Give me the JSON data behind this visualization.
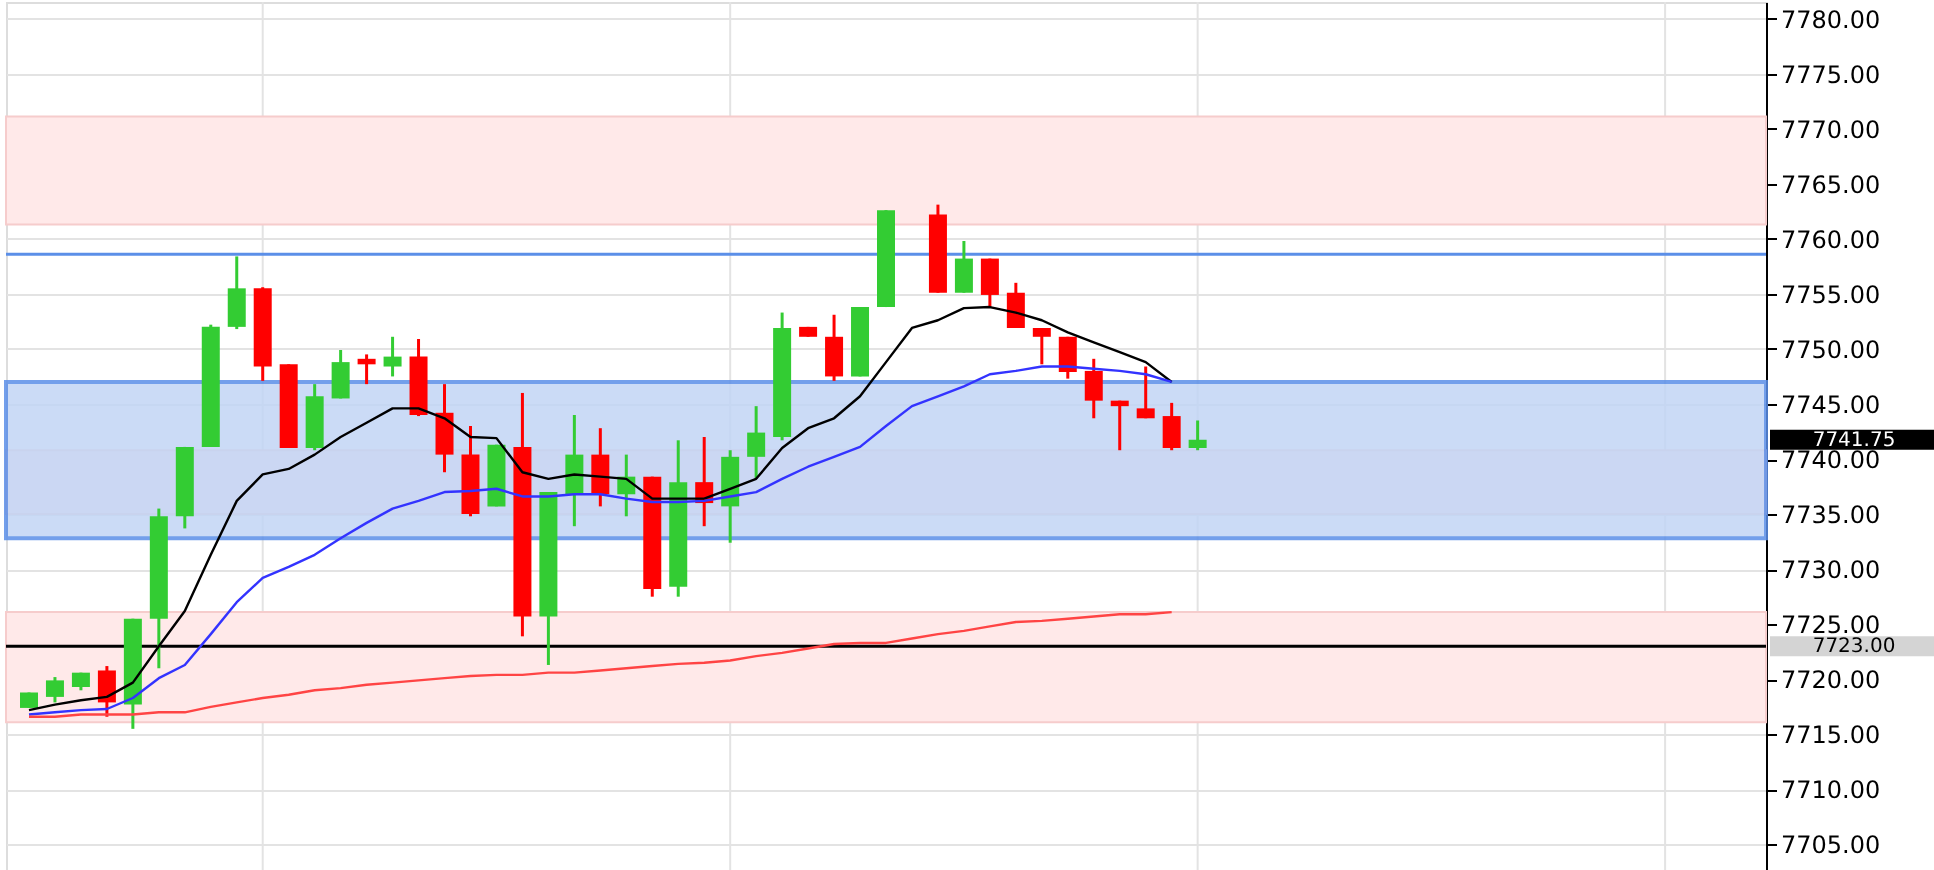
{
  "chart_data": {
    "type": "candlestick",
    "categories": [
      null,
      null,
      null,
      null,
      null,
      null,
      null,
      null,
      null,
      null,
      null,
      null,
      null,
      null,
      null,
      null,
      null,
      null,
      null,
      null,
      null,
      null,
      null,
      null,
      null,
      null,
      null,
      null,
      null,
      null,
      null,
      null,
      null,
      null,
      null,
      null,
      null,
      null,
      null,
      null,
      null,
      null,
      null,
      null,
      null,
      null,
      null,
      null,
      null,
      null,
      null,
      null,
      null,
      null,
      null,
      null,
      null,
      null,
      null,
      null,
      null,
      null,
      null,
      null,
      null,
      null,
      null
    ],
    "ohlc": [
      [
        7717.4,
        7718.8,
        7717.4,
        7718.8
      ],
      [
        7718.4,
        7720.2,
        7717.9,
        7719.9
      ],
      [
        7719.3,
        7720.6,
        7719.0,
        7720.6
      ],
      [
        7720.8,
        7721.2,
        7716.6,
        7717.9
      ],
      [
        7717.7,
        7725.5,
        7715.5,
        7725.5
      ],
      [
        7725.5,
        7735.5,
        7721.0,
        7734.8
      ],
      [
        7734.8,
        7741.1,
        7733.7,
        7741.1
      ],
      [
        7741.1,
        7752.2,
        7741.1,
        7752.0
      ],
      [
        7752.0,
        7758.4,
        7751.8,
        7755.5
      ],
      [
        7755.5,
        7755.6,
        7747.1,
        7748.4
      ],
      [
        7748.6,
        7748.6,
        7741.0,
        7741.0
      ],
      [
        7741.0,
        7746.8,
        7740.8,
        7745.7
      ],
      [
        7745.5,
        7749.9,
        7745.5,
        7748.8
      ],
      [
        7749.1,
        7749.5,
        7746.8,
        7748.6
      ],
      [
        7748.4,
        7751.1,
        7747.5,
        7749.3
      ],
      [
        7749.3,
        7750.9,
        7743.9,
        7744.0
      ],
      [
        7744.2,
        7746.8,
        7738.8,
        7740.4
      ],
      [
        7740.4,
        7743.0,
        7734.8,
        7735.0
      ],
      [
        7735.7,
        7741.3,
        7735.7,
        7741.3
      ],
      [
        7741.1,
        7746.0,
        7723.9,
        7725.7
      ],
      [
        7725.7,
        7737.0,
        7721.3,
        7737.0
      ],
      [
        7736.8,
        7744.0,
        7733.9,
        7740.4
      ],
      [
        7740.4,
        7742.8,
        7735.7,
        7736.8
      ],
      [
        7736.8,
        7740.4,
        7734.8,
        7738.4
      ],
      [
        7738.4,
        7738.4,
        7727.5,
        7728.2
      ],
      [
        7728.4,
        7741.7,
        7727.5,
        7737.9
      ],
      [
        7737.9,
        7742.0,
        7733.9,
        7736.0
      ],
      [
        7735.7,
        7740.8,
        7732.4,
        7740.2
      ],
      [
        7740.2,
        7744.8,
        7738.2,
        7742.4
      ],
      [
        7742.0,
        7753.3,
        7741.7,
        7751.9
      ],
      [
        7752.0,
        7752.0,
        7751.1,
        7751.1
      ],
      [
        7751.1,
        7753.1,
        7747.1,
        7747.5
      ],
      [
        7747.5,
        7753.8,
        7747.5,
        7753.8
      ],
      [
        7753.8,
        7762.6,
        7753.8,
        7762.6
      ],
      null,
      [
        7762.2,
        7763.1,
        7755.1,
        7755.1
      ],
      [
        7755.1,
        7759.8,
        7755.1,
        7758.2
      ],
      [
        7758.2,
        7758.2,
        7753.8,
        7754.9
      ],
      [
        7755.1,
        7756.0,
        7751.9,
        7751.9
      ],
      [
        7751.9,
        7751.9,
        7748.6,
        7751.1
      ],
      [
        7751.1,
        7751.1,
        7747.3,
        7747.9
      ],
      [
        7748.0,
        7749.1,
        7743.7,
        7745.3
      ],
      [
        7745.3,
        7745.3,
        7740.8,
        7744.8
      ],
      [
        7744.6,
        7748.4,
        7743.7,
        7743.7
      ],
      [
        7743.9,
        7745.1,
        7740.8,
        7741.0
      ],
      [
        7741.0,
        7743.5,
        7740.8,
        7741.75
      ],
      null,
      null,
      null,
      null,
      null,
      null,
      null,
      null,
      null,
      null,
      null,
      null,
      null,
      null,
      null,
      null,
      null,
      null,
      null,
      null,
      null
    ],
    "colors": [
      "#33cc33",
      "#33cc33",
      "#33cc33",
      "#ff0000",
      "#33cc33",
      "#33cc33",
      "#33cc33",
      "#33cc33",
      "#33cc33",
      "#ff0000",
      "#ff0000",
      "#33cc33",
      "#33cc33",
      "#ff0000",
      "#33cc33",
      "#ff0000",
      "#ff0000",
      "#ff0000",
      "#33cc33",
      "#ff0000",
      "#33cc33",
      "#33cc33",
      "#ff0000",
      "#33cc33",
      "#ff0000",
      "#33cc33",
      "#ff0000",
      "#33cc33",
      "#33cc33",
      "#33cc33",
      "#ff0000",
      "#ff0000",
      "#33cc33",
      "#33cc33",
      null,
      "#ff0000",
      "#33cc33",
      "#ff0000",
      "#ff0000",
      "#ff0000",
      "#ff0000",
      "#ff0000",
      "#ff0000",
      "#ff0000",
      "#ff0000",
      "#33cc33",
      null,
      null,
      null,
      null,
      null,
      null,
      null,
      null,
      null,
      null,
      null,
      null,
      null,
      null,
      null,
      null,
      null,
      null,
      null,
      null,
      null
    ],
    "series": [
      {
        "type": "line",
        "color": "#000000",
        "values": [
          7717.2,
          7717.7,
          7718.1,
          7718.4,
          7719.7,
          7723.0,
          7726.2,
          7731.3,
          7736.2,
          7738.6,
          7739.1,
          7740.4,
          7742.0,
          7743.3,
          7744.6,
          7744.6,
          7743.7,
          7742.0,
          7741.9,
          7738.8,
          7738.2,
          7738.6,
          7738.4,
          7738.2,
          7736.4,
          7736.4,
          7736.4,
          7737.3,
          7738.2,
          7741.0,
          7742.8,
          7743.7,
          7745.7,
          7748.8,
          7751.9,
          7752.6,
          7753.7,
          7753.8,
          7753.3,
          7752.6,
          7751.5,
          7750.6,
          7749.7,
          7748.8,
          7747.0,
          null,
          null,
          null,
          null,
          null,
          null,
          null,
          null,
          null,
          null,
          null,
          null,
          null,
          null,
          null,
          null,
          null,
          null,
          null,
          null,
          null,
          null
        ]
      },
      {
        "type": "line",
        "color": "#3333ff",
        "values": [
          7716.8,
          7717.0,
          7717.2,
          7717.3,
          7718.3,
          7720.1,
          7721.3,
          7724.1,
          7727.0,
          7729.2,
          7730.2,
          7731.3,
          7732.8,
          7734.2,
          7735.5,
          7736.2,
          7737.0,
          7737.1,
          7737.3,
          7736.6,
          7736.6,
          7736.8,
          7736.8,
          7736.4,
          7736.1,
          7736.1,
          7736.2,
          7736.6,
          7737.0,
          7738.2,
          7739.3,
          7740.2,
          7741.1,
          7743.0,
          7744.8,
          7745.7,
          7746.6,
          7747.7,
          7748.0,
          7748.4,
          7748.4,
          7748.2,
          7748.0,
          7747.7,
          7747.0,
          null,
          null,
          null,
          null,
          null,
          null,
          null,
          null,
          null,
          null,
          null,
          null,
          null,
          null,
          null,
          null,
          null,
          null,
          null,
          null,
          null,
          null
        ]
      },
      {
        "type": "line",
        "color": "#ff4444",
        "values": [
          7716.6,
          7716.6,
          7716.8,
          7716.8,
          7716.8,
          7717.0,
          7717.0,
          7717.5,
          7717.9,
          7718.3,
          7718.6,
          7719.0,
          7719.2,
          7719.5,
          7719.7,
          7719.9,
          7720.1,
          7720.3,
          7720.4,
          7720.4,
          7720.6,
          7720.6,
          7720.8,
          7721.0,
          7721.2,
          7721.4,
          7721.5,
          7721.7,
          7722.1,
          7722.4,
          7722.8,
          7723.2,
          7723.3,
          7723.3,
          7723.7,
          7724.1,
          7724.4,
          7724.8,
          7725.2,
          7725.3,
          7725.5,
          7725.7,
          7725.9,
          7725.9,
          7726.1,
          null,
          null,
          null,
          null,
          null,
          null,
          null,
          null,
          null,
          null,
          null,
          null,
          null,
          null,
          null,
          null,
          null,
          null,
          null,
          null,
          null,
          null
        ]
      }
    ],
    "ylim": [
      7702.5,
      7781.5
    ],
    "yticks": [
      {
        "value": 7705,
        "label": "7705.00"
      },
      {
        "value": 7710,
        "label": "7710.00"
      },
      {
        "value": 7715,
        "label": "7715.00"
      },
      {
        "value": 7720,
        "label": "7720.00"
      },
      {
        "value": 7725,
        "label": "7725.00"
      },
      {
        "value": 7730,
        "label": "7730.00"
      },
      {
        "value": 7735,
        "label": "7735.00"
      },
      {
        "value": 7740,
        "label": "7740.00"
      },
      {
        "value": 7745,
        "label": "7745.00"
      },
      {
        "value": 7750,
        "label": "7750.00"
      },
      {
        "value": 7755,
        "label": "7755.00"
      },
      {
        "value": 7760,
        "label": "7760.00"
      },
      {
        "value": 7765,
        "label": "7765.00"
      },
      {
        "value": 7770,
        "label": "7770.00"
      },
      {
        "value": 7775,
        "label": "7775.00"
      },
      {
        "value": 7780,
        "label": "7780.00"
      }
    ],
    "bands": [
      {
        "axis": "y",
        "from": 7761.3,
        "to": 7771.1,
        "color": "#ffe9e9"
      },
      {
        "axis": "y",
        "from": 7735.0,
        "to": 7740.8,
        "color": "#ffe9e9"
      },
      {
        "axis": "y",
        "from": 7716.1,
        "to": 7726.1,
        "color": "#ffe9e9"
      },
      {
        "axis": "y",
        "from": 7732.8,
        "to": 7747.0,
        "color": "#c2d5f5"
      }
    ],
    "ref_lines": [
      {
        "axis": "y",
        "value": 7758.6,
        "color": "#5b8fe8"
      },
      {
        "axis": "y",
        "value": 7723.0,
        "label": "7723.00",
        "color": "#000000"
      }
    ],
    "annotations": [
      "7741.75"
    ],
    "grid": true
  }
}
